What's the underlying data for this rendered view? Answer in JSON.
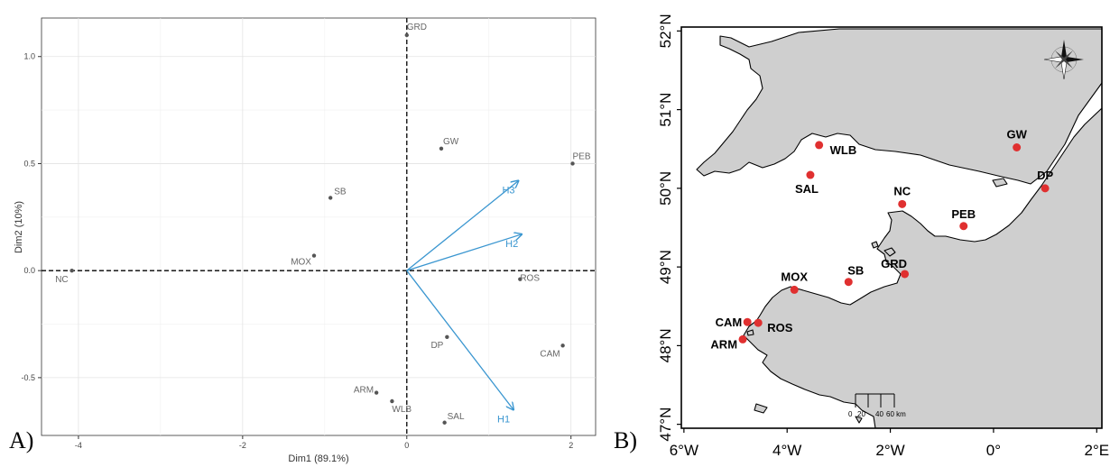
{
  "panel_labels": {
    "a": "A)",
    "b": "B)"
  },
  "chart_data": [
    {
      "type": "scatter",
      "subtype": "pca-biplot",
      "xlabel": "Dim1 (89.1%)",
      "ylabel": "Dim2 (10%)",
      "xlim": [
        -4.45,
        2.3
      ],
      "ylim": [
        -0.77,
        1.18
      ],
      "xticks": [
        -4,
        -2,
        0,
        2
      ],
      "yticks": [
        -0.5,
        0.0,
        0.5,
        1.0
      ],
      "ytick_labels": [
        "-0.5",
        "0.0",
        "0.5",
        "1.0"
      ],
      "grid": true,
      "reference_lines": {
        "x": 0,
        "y": 0
      },
      "point_color": "#555555",
      "label_color": "#666666",
      "points": [
        {
          "label": "GRD",
          "x": 0.0,
          "y": 1.1
        },
        {
          "label": "GW",
          "x": 0.42,
          "y": 0.57
        },
        {
          "label": "PEB",
          "x": 2.02,
          "y": 0.5
        },
        {
          "label": "SB",
          "x": -0.93,
          "y": 0.34
        },
        {
          "label": "MOX",
          "x": -1.13,
          "y": 0.07
        },
        {
          "label": "NC",
          "x": -4.08,
          "y": 0.0
        },
        {
          "label": "ROS",
          "x": 1.38,
          "y": -0.04
        },
        {
          "label": "DP",
          "x": 0.49,
          "y": -0.31
        },
        {
          "label": "CAM",
          "x": 1.9,
          "y": -0.35
        },
        {
          "label": "ARM",
          "x": -0.37,
          "y": -0.57
        },
        {
          "label": "WLB",
          "x": -0.18,
          "y": -0.61
        },
        {
          "label": "SAL",
          "x": 0.46,
          "y": -0.71
        }
      ],
      "arrow_color": "#3a96d0",
      "arrows": [
        {
          "label": "H3",
          "x": 1.36,
          "y": 0.42
        },
        {
          "label": "H2",
          "x": 1.4,
          "y": 0.17
        },
        {
          "label": "H1",
          "x": 1.3,
          "y": -0.65
        }
      ]
    },
    {
      "type": "map",
      "lon_range": [
        -6.05,
        2.1
      ],
      "lat_range": [
        46.95,
        52.05
      ],
      "lon_ticks": [
        -6,
        -4,
        -2,
        0,
        2
      ],
      "lon_tick_labels": [
        "6°W",
        "4°W",
        "2°W",
        "0°",
        "2°E"
      ],
      "lat_ticks": [
        47,
        48,
        49,
        50,
        51,
        52
      ],
      "lat_tick_labels": [
        "47°N",
        "48°N",
        "49°N",
        "50°N",
        "51°N",
        "52°N"
      ],
      "land_color": "#cfcfcf",
      "sea_color": "#ffffff",
      "site_color": "#e03030",
      "sites": [
        {
          "label": "WLB",
          "lon": -3.38,
          "lat": 50.55
        },
        {
          "label": "SAL",
          "lon": -3.55,
          "lat": 50.17
        },
        {
          "label": "GW",
          "lon": 0.45,
          "lat": 50.52
        },
        {
          "label": "DP",
          "lon": 1.0,
          "lat": 50.0
        },
        {
          "label": "NC",
          "lon": -1.77,
          "lat": 49.8
        },
        {
          "label": "PEB",
          "lon": -0.58,
          "lat": 49.52
        },
        {
          "label": "GRD",
          "lon": -1.72,
          "lat": 48.91
        },
        {
          "label": "SB",
          "lon": -2.81,
          "lat": 48.81
        },
        {
          "label": "MOX",
          "lon": -3.86,
          "lat": 48.71
        },
        {
          "label": "CAM",
          "lon": -4.77,
          "lat": 48.3
        },
        {
          "label": "ROS",
          "lon": -4.56,
          "lat": 48.29
        },
        {
          "label": "ARM",
          "lon": -4.86,
          "lat": 48.08
        }
      ],
      "scale_bar": {
        "ticks": [
          "0",
          "20",
          "40",
          "60 km"
        ]
      },
      "compass_rose": "compass-rose-icon"
    }
  ]
}
